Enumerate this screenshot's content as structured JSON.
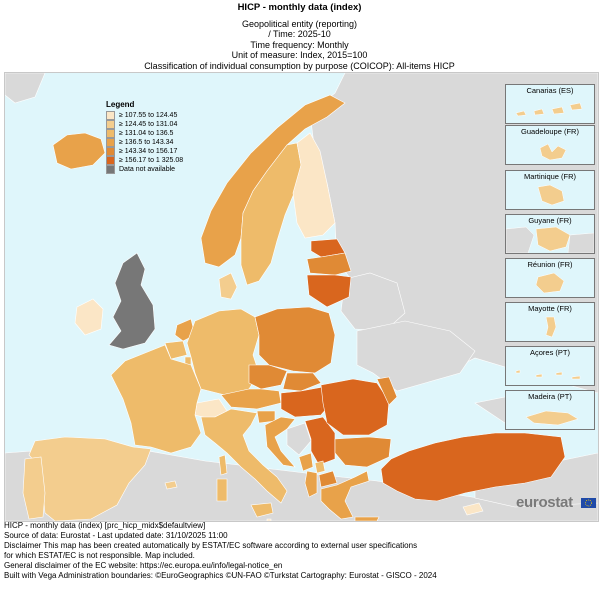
{
  "header": {
    "title": "HICP - monthly data (index)",
    "lines": [
      "Geopolitical entity (reporting)",
      "/ Time:  2025-10",
      "Time frequency:  Monthly",
      "Unit of measure:  Index, 2015=100",
      "Classification of individual consumption by purpose (COICOP):  All-items HICP"
    ]
  },
  "legend": {
    "title": "Legend",
    "items": [
      {
        "label": "≥ 107.55 to 124.45",
        "color": "#fbe6c6"
      },
      {
        "label": "≥ 124.45 to 131.04",
        "color": "#f3cd8e"
      },
      {
        "label": "≥ 131.04 to 136.5",
        "color": "#eebb6a"
      },
      {
        "label": "≥ 136.5 to 143.34",
        "color": "#e8a24a"
      },
      {
        "label": "≥ 143.34 to 156.17",
        "color": "#e08a35"
      },
      {
        "label": "≥ 156.17 to 1 325.08",
        "color": "#d9661e"
      },
      {
        "label": "Data not available",
        "color": "#777777"
      }
    ]
  },
  "insets": [
    {
      "label": "Canarias (ES)"
    },
    {
      "label": "Guadeloupe (FR)"
    },
    {
      "label": "Martinique (FR)"
    },
    {
      "label": "Guyane (FR)"
    },
    {
      "label": "Réunion (FR)"
    },
    {
      "label": "Mayotte (FR)"
    },
    {
      "label": "Açores (PT)"
    },
    {
      "label": "Madeira (PT)"
    }
  ],
  "footer": {
    "lines": [
      "HICP - monthly data (index) [prc_hicp_midx$defaultview]",
      "Source of data: Eurostat - Last updated date: 31/10/2025 11:00",
      "Disclaimer This map has been created automatically by ESTAT/EC software according to external user specifications",
      "for which ESTAT/EC is not responsible. Map included.",
      "General disclaimer of the EC website: https://ec.europa.eu/info/legal-notice_en",
      "Built with Vega Administration boundaries: ©EuroGeographics ©UN-FAO ©Turkstat Cartography: Eurostat - GISCO - 2024"
    ]
  },
  "brand": {
    "logo_text": "eurostat"
  },
  "colors": {
    "sea": "#dff6fb",
    "nodata_country": "#d9d9d9",
    "border": "#ffffff"
  }
}
